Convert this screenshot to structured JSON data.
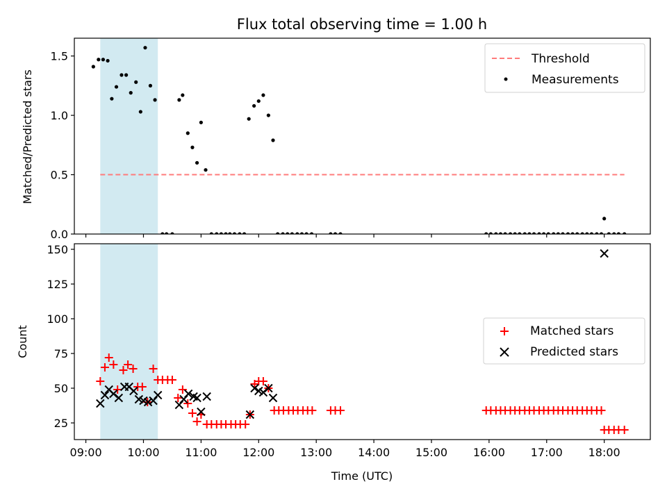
{
  "chart_data": [
    {
      "type": "scatter",
      "title": "Flux total observing time = 1.00 h",
      "xlabel": "",
      "ylabel": "Matched/Predicted stars",
      "xlim": [
        8.8,
        18.8
      ],
      "ylim": [
        0.0,
        1.65
      ],
      "yticks": [
        0.0,
        0.5,
        1.0,
        1.5
      ],
      "ytick_labels": [
        "0.0",
        "0.5",
        "1.0",
        "1.5"
      ],
      "highlight_span": [
        9.25,
        10.25
      ],
      "highlight_color": "#add8e6",
      "legend": {
        "placement": "top-right",
        "entries": [
          {
            "label": "Threshold",
            "marker": "dashed-line",
            "color": "#ff7b7b"
          },
          {
            "label": "Measurements",
            "marker": "dot",
            "color": "#000000"
          }
        ]
      },
      "threshold": {
        "value": 0.5,
        "x_range": [
          9.25,
          18.35
        ],
        "color": "#ff7b7b"
      },
      "series": [
        {
          "name": "Measurements",
          "color": "#000000",
          "x": [
            9.13,
            9.22,
            9.3,
            9.38,
            9.45,
            9.53,
            9.62,
            9.7,
            9.78,
            9.87,
            9.95,
            10.03,
            10.12,
            10.2,
            10.33,
            10.4,
            10.5,
            10.62,
            10.68,
            10.77,
            10.85,
            10.93,
            11.0,
            11.08,
            11.18,
            11.27,
            11.35,
            11.43,
            11.5,
            11.58,
            11.67,
            11.75,
            11.83,
            11.92,
            12.0,
            12.08,
            12.17,
            12.25,
            12.33,
            12.42,
            12.5,
            12.58,
            12.67,
            12.75,
            12.83,
            12.92,
            13.25,
            13.33,
            13.42,
            15.95,
            16.03,
            16.12,
            16.2,
            16.28,
            16.37,
            16.45,
            16.53,
            16.62,
            16.7,
            16.78,
            16.87,
            16.95,
            17.03,
            17.12,
            17.2,
            17.28,
            17.37,
            17.45,
            17.53,
            17.62,
            17.7,
            17.78,
            17.87,
            17.95,
            18.0,
            18.08,
            18.17,
            18.25,
            18.35
          ],
          "y": [
            1.41,
            1.47,
            1.47,
            1.46,
            1.14,
            1.24,
            1.34,
            1.34,
            1.19,
            1.28,
            1.03,
            1.57,
            1.25,
            1.13,
            0.0,
            0.0,
            0.0,
            1.13,
            1.17,
            0.85,
            0.73,
            0.6,
            0.94,
            0.54,
            0.0,
            0.0,
            0.0,
            0.0,
            0.0,
            0.0,
            0.0,
            0.0,
            0.97,
            1.08,
            1.12,
            1.17,
            1.0,
            0.79,
            0.0,
            0.0,
            0.0,
            0.0,
            0.0,
            0.0,
            0.0,
            0.0,
            0.0,
            0.0,
            0.0,
            0.0,
            0.0,
            0.0,
            0.0,
            0.0,
            0.0,
            0.0,
            0.0,
            0.0,
            0.0,
            0.0,
            0.0,
            0.0,
            0.0,
            0.0,
            0.0,
            0.0,
            0.0,
            0.0,
            0.0,
            0.0,
            0.0,
            0.0,
            0.0,
            0.0,
            0.13,
            0.0,
            0.0,
            0.0,
            0.0
          ]
        }
      ]
    },
    {
      "type": "scatter",
      "title": "",
      "xlabel": "Time (UTC)",
      "ylabel": "Count",
      "xlim": [
        8.8,
        18.8
      ],
      "ylim": [
        13,
        154
      ],
      "yticks": [
        25,
        50,
        75,
        100,
        125,
        150
      ],
      "ytick_labels": [
        "25",
        "50",
        "75",
        "100",
        "125",
        "150"
      ],
      "xticks": [
        9,
        10,
        11,
        12,
        13,
        14,
        15,
        16,
        17,
        18
      ],
      "xtick_labels": [
        "09:00",
        "10:00",
        "11:00",
        "12:00",
        "13:00",
        "14:00",
        "15:00",
        "16:00",
        "17:00",
        "18:00"
      ],
      "highlight_span": [
        9.25,
        10.25
      ],
      "highlight_color": "#add8e6",
      "legend": {
        "placement": "center-right",
        "entries": [
          {
            "label": "Matched stars",
            "marker": "plus",
            "color": "#ff0000"
          },
          {
            "label": "Predicted stars",
            "marker": "x",
            "color": "#000000"
          }
        ]
      },
      "series": [
        {
          "name": "Matched stars",
          "color": "#ff0000",
          "x": [
            9.25,
            9.33,
            9.4,
            9.48,
            9.55,
            9.65,
            9.73,
            9.82,
            9.9,
            9.98,
            10.07,
            10.17,
            10.25,
            10.33,
            10.42,
            10.5,
            10.6,
            10.68,
            10.77,
            10.85,
            10.93,
            11.0,
            11.1,
            11.18,
            11.27,
            11.35,
            11.43,
            11.52,
            11.6,
            11.68,
            11.77,
            11.85,
            11.93,
            12.0,
            12.08,
            12.17,
            12.27,
            12.35,
            12.43,
            12.52,
            12.6,
            12.68,
            12.77,
            12.85,
            12.93,
            13.25,
            13.33,
            13.42,
            15.95,
            16.03,
            16.12,
            16.2,
            16.28,
            16.37,
            16.45,
            16.53,
            16.62,
            16.7,
            16.78,
            16.87,
            16.95,
            17.03,
            17.12,
            17.2,
            17.28,
            17.37,
            17.45,
            17.53,
            17.62,
            17.7,
            17.78,
            17.87,
            17.95,
            18.0,
            18.08,
            18.17,
            18.25,
            18.35
          ],
          "y": [
            55,
            65,
            72,
            67,
            49,
            63,
            67,
            64,
            51,
            51,
            40,
            64,
            56,
            56,
            56,
            56,
            43,
            49,
            39,
            32,
            26,
            31,
            24,
            24,
            24,
            24,
            24,
            24,
            24,
            24,
            24,
            31,
            53,
            55,
            55,
            50,
            34,
            34,
            34,
            34,
            34,
            34,
            34,
            34,
            34,
            34,
            34,
            34,
            34,
            34,
            34,
            34,
            34,
            34,
            34,
            34,
            34,
            34,
            34,
            34,
            34,
            34,
            34,
            34,
            34,
            34,
            34,
            34,
            34,
            34,
            34,
            34,
            34,
            20,
            20,
            20,
            20,
            20
          ]
        },
        {
          "name": "Predicted stars",
          "color": "#000000",
          "x": [
            9.25,
            9.33,
            9.4,
            9.48,
            9.57,
            9.67,
            9.75,
            9.83,
            9.92,
            10.0,
            10.08,
            10.17,
            10.25,
            10.62,
            10.7,
            10.78,
            10.87,
            10.93,
            11.0,
            11.1,
            11.85,
            11.93,
            12.0,
            12.08,
            12.17,
            12.25,
            18.0
          ],
          "y": [
            39,
            45,
            49,
            46,
            43,
            51,
            51,
            48,
            42,
            41,
            40,
            41,
            45,
            38,
            42,
            46,
            44,
            43,
            33,
            44,
            31,
            50,
            48,
            47,
            50,
            43,
            147
          ]
        }
      ]
    }
  ]
}
